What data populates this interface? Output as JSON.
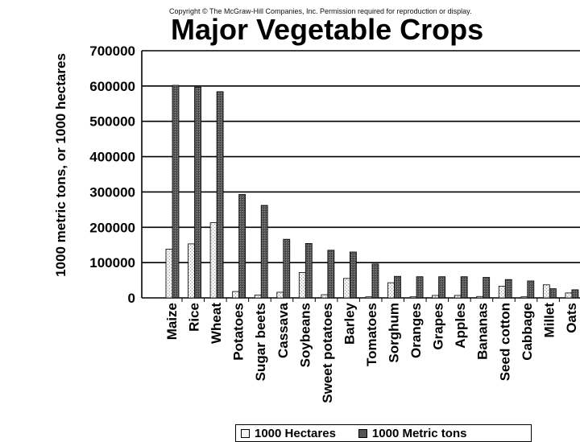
{
  "copyright": "Copyright © The McGraw-Hill Companies, Inc. Permission required for reproduction or display.",
  "chart_data": {
    "type": "bar",
    "title": "Major Vegetable Crops",
    "xlabel": "",
    "ylabel": "1000 metric tons, or 1000 hectares",
    "ylim": [
      0,
      700000
    ],
    "yticks": [
      "0",
      "100000",
      "200000",
      "300000",
      "400000",
      "500000",
      "600000",
      "700000"
    ],
    "grid": true,
    "legend_position": "bottom",
    "categories": [
      "Maize",
      "Rice",
      "Wheat",
      "Potatoes",
      "Sugar beets",
      "Cassava",
      "Soybeans",
      "Sweet potatoes",
      "Barley",
      "Tomatoes",
      "Sorghum",
      "Oranges",
      "Grapes",
      "Apples",
      "Bananas",
      "Seed cotton",
      "Cabbage",
      "Millet",
      "Oats"
    ],
    "series": [
      {
        "name": "1000 Hectares",
        "color": "#eeeeee",
        "values": [
          138000,
          153000,
          213000,
          18000,
          8000,
          16000,
          72000,
          9000,
          55000,
          3000,
          43000,
          3000,
          7000,
          7000,
          4000,
          33000,
          3000,
          37000,
          14000
        ]
      },
      {
        "name": "1000 Metric tons",
        "color": "#555555",
        "values": [
          602000,
          597000,
          584000,
          293000,
          262000,
          166000,
          154000,
          135000,
          130000,
          96000,
          61000,
          60000,
          60000,
          60000,
          58000,
          52000,
          48000,
          26000,
          23000
        ]
      }
    ]
  }
}
